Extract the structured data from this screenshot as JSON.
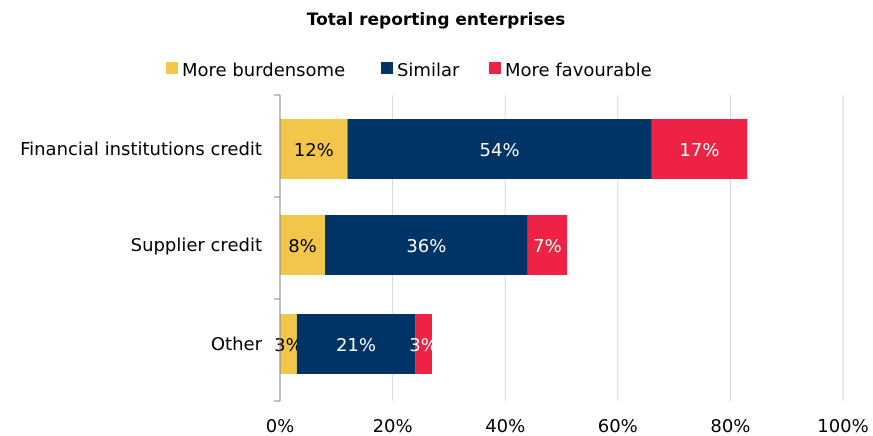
{
  "chart_data": {
    "type": "bar",
    "orientation": "horizontal",
    "stacked": true,
    "title": "Total reporting enterprises",
    "categories": [
      "Financial institutions credit",
      "Supplier credit",
      "Other"
    ],
    "series": [
      {
        "name": "More burdensome",
        "color": "#F2C64B",
        "values": [
          12,
          8,
          3
        ],
        "labels": [
          "12%",
          "8%",
          "3%"
        ],
        "label_color": "#000000"
      },
      {
        "name": "Similar",
        "color": "#003366",
        "values": [
          54,
          36,
          21
        ],
        "labels": [
          "54%",
          "36%",
          "21%"
        ],
        "label_color": "#ffffff"
      },
      {
        "name": "More favourable",
        "color": "#EE2244",
        "values": [
          17,
          7,
          3
        ],
        "labels": [
          "17%",
          "7%",
          "3%"
        ],
        "label_color": "#ffffff"
      }
    ],
    "xlim": [
      0,
      100
    ],
    "xticks": [
      "0%",
      "20%",
      "40%",
      "60%",
      "80%",
      "100%"
    ],
    "grid": true,
    "legend_position": "top"
  }
}
